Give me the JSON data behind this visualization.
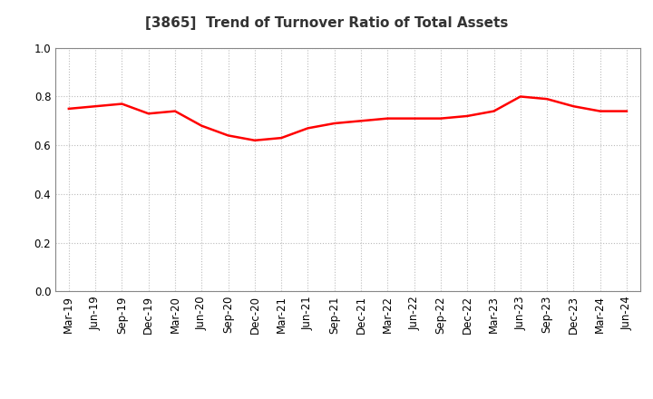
{
  "title": "[3865]  Trend of Turnover Ratio of Total Assets",
  "x_labels": [
    "Mar-19",
    "Jun-19",
    "Sep-19",
    "Dec-19",
    "Mar-20",
    "Jun-20",
    "Sep-20",
    "Dec-20",
    "Mar-21",
    "Jun-21",
    "Sep-21",
    "Dec-21",
    "Mar-22",
    "Jun-22",
    "Sep-22",
    "Dec-22",
    "Mar-23",
    "Jun-23",
    "Sep-23",
    "Dec-23",
    "Mar-24",
    "Jun-24"
  ],
  "y_values": [
    0.75,
    0.76,
    0.77,
    0.73,
    0.74,
    0.68,
    0.64,
    0.62,
    0.63,
    0.67,
    0.69,
    0.7,
    0.71,
    0.71,
    0.71,
    0.72,
    0.74,
    0.8,
    0.79,
    0.76,
    0.74,
    0.74
  ],
  "line_color": "#FF0000",
  "line_width": 1.8,
  "ylim": [
    0.0,
    1.0
  ],
  "yticks": [
    0.0,
    0.2,
    0.4,
    0.6,
    0.8,
    1.0
  ],
  "background_color": "#FFFFFF",
  "grid_color": "#BBBBBB",
  "title_fontsize": 11,
  "tick_fontsize": 8.5
}
